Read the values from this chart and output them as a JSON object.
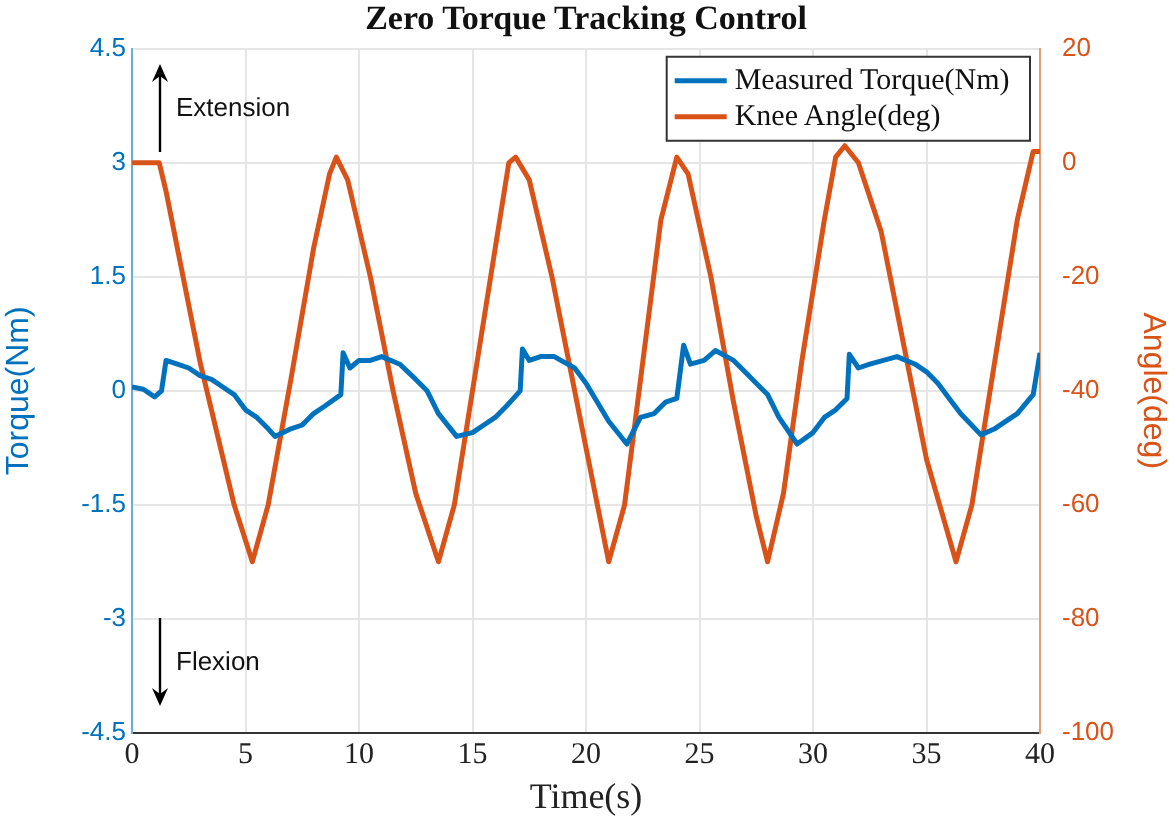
{
  "chart_data": {
    "type": "line",
    "title": "Zero Torque Tracking Control",
    "xlabel": "Time(s)",
    "ylabel": "Torque(Nm)",
    "y2label": "Angle(deg)",
    "annotations": [
      "Extension",
      "Flexion"
    ],
    "xlim": [
      0,
      40
    ],
    "xticks": [
      0,
      5,
      10,
      15,
      20,
      25,
      30,
      35,
      40
    ],
    "ylim": [
      -4.5,
      4.5
    ],
    "yticks": [
      -4.5,
      -3,
      -1.5,
      0,
      1.5,
      3,
      4.5
    ],
    "y2lim": [
      -100,
      20
    ],
    "y2ticks": [
      -100,
      -80,
      -60,
      -40,
      -20,
      0,
      20
    ],
    "grid": true,
    "legend": "top right",
    "marker": "none",
    "line_style": "solid",
    "series": [
      {
        "name": "Measured Torque(Nm)",
        "color": "#0072bd",
        "x": [
          0,
          0.5,
          1.0,
          1.3,
          1.5,
          2,
          2.5,
          3,
          3.5,
          4,
          4.5,
          5,
          5.5,
          6,
          6.3,
          7,
          7.5,
          8,
          8.5,
          9.2,
          9.3,
          9.6,
          10,
          10.5,
          11,
          11.8,
          12.5,
          13,
          13.5,
          14.3,
          15,
          15.5,
          16,
          16.5,
          17.1,
          17.2,
          17.5,
          18,
          18.6,
          19.5,
          20,
          20.5,
          21,
          21.8,
          22.4,
          23,
          23.5,
          24.0,
          24.3,
          24.6,
          25.2,
          25.7,
          26.5,
          27,
          27.5,
          28,
          28.5,
          29.3,
          30,
          30.5,
          31,
          31.5,
          31.6,
          32,
          32.5,
          33.7,
          34.5,
          35,
          35.5,
          36,
          36.5,
          37.4,
          38,
          38.5,
          39,
          39.7,
          40
        ],
        "values": [
          0.05,
          0.02,
          -0.08,
          0.0,
          0.4,
          0.35,
          0.3,
          0.2,
          0.15,
          0.05,
          -0.05,
          -0.25,
          -0.35,
          -0.5,
          -0.6,
          -0.5,
          -0.45,
          -0.3,
          -0.2,
          -0.05,
          0.5,
          0.3,
          0.4,
          0.4,
          0.45,
          0.35,
          0.15,
          0.0,
          -0.3,
          -0.6,
          -0.55,
          -0.45,
          -0.35,
          -0.2,
          0.0,
          0.55,
          0.4,
          0.45,
          0.45,
          0.3,
          0.1,
          -0.15,
          -0.4,
          -0.7,
          -0.35,
          -0.3,
          -0.15,
          -0.1,
          0.6,
          0.35,
          0.4,
          0.53,
          0.4,
          0.25,
          0.1,
          -0.05,
          -0.35,
          -0.7,
          -0.55,
          -0.35,
          -0.25,
          -0.1,
          0.48,
          0.3,
          0.35,
          0.45,
          0.35,
          0.25,
          0.1,
          -0.1,
          -0.3,
          -0.58,
          -0.5,
          -0.4,
          -0.3,
          -0.05,
          0.5
        ]
      },
      {
        "name": "Knee Angle(deg)",
        "color": "#d95319",
        "axis": "y2",
        "x": [
          0,
          1.2,
          1.5,
          3,
          4.5,
          5.3,
          6,
          7,
          8,
          8.7,
          9.0,
          9.5,
          10.5,
          11.5,
          12.5,
          13.5,
          14.2,
          15,
          16,
          16.6,
          16.9,
          17.5,
          18.5,
          19.5,
          20.5,
          21.0,
          21.7,
          22.5,
          23.3,
          24.0,
          24.5,
          25.5,
          26.5,
          27.5,
          28.0,
          28.7,
          29.5,
          30.5,
          31.0,
          31.4,
          32,
          33,
          34,
          35,
          36.3,
          37,
          38,
          39,
          39.7,
          40
        ],
        "values": [
          0,
          0,
          -5,
          -35,
          -60,
          -70,
          -60,
          -38,
          -15,
          -2,
          1,
          -3,
          -20,
          -40,
          -58,
          -70,
          -60,
          -40,
          -15,
          0,
          1,
          -3,
          -20,
          -40,
          -60,
          -70,
          -60,
          -35,
          -10,
          1,
          -2,
          -20,
          -42,
          -62,
          -70,
          -58,
          -35,
          -10,
          1,
          3,
          0,
          -12,
          -32,
          -52,
          -70,
          -60,
          -35,
          -10,
          2,
          2
        ]
      }
    ]
  }
}
